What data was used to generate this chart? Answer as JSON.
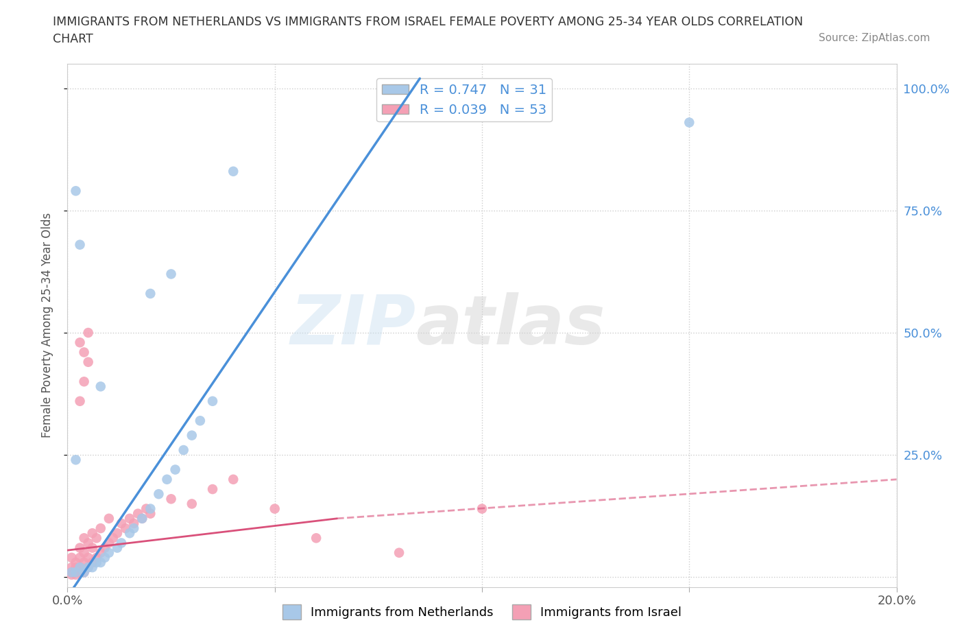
{
  "title_line1": "IMMIGRANTS FROM NETHERLANDS VS IMMIGRANTS FROM ISRAEL FEMALE POVERTY AMONG 25-34 YEAR OLDS CORRELATION",
  "title_line2": "CHART",
  "source_text": "Source: ZipAtlas.com",
  "ylabel": "Female Poverty Among 25-34 Year Olds",
  "xlim": [
    0.0,
    0.2
  ],
  "ylim": [
    -0.02,
    1.05
  ],
  "xticks": [
    0.0,
    0.05,
    0.1,
    0.15,
    0.2
  ],
  "xticklabels": [
    "0.0%",
    "",
    "",
    "",
    "20.0%"
  ],
  "yticks": [
    0.0,
    0.25,
    0.5,
    0.75,
    1.0
  ],
  "yticklabels": [
    "",
    "25.0%",
    "50.0%",
    "75.0%",
    "100.0%"
  ],
  "netherlands_color": "#a8c8e8",
  "netherlands_line_color": "#4a90d9",
  "israel_color": "#f4a0b5",
  "israel_line_color": "#d9507a",
  "R_netherlands": 0.747,
  "N_netherlands": 31,
  "R_israel": 0.039,
  "N_israel": 53,
  "legend_label_netherlands": "Immigrants from Netherlands",
  "legend_label_israel": "Immigrants from Israel",
  "watermark_text": "ZIPatlas",
  "background_color": "#ffffff",
  "grid_color": "#cccccc",
  "netherlands_scatter": [
    [
      0.001,
      0.01
    ],
    [
      0.002,
      0.01
    ],
    [
      0.003,
      0.02
    ],
    [
      0.004,
      0.01
    ],
    [
      0.005,
      0.02
    ],
    [
      0.006,
      0.02
    ],
    [
      0.007,
      0.03
    ],
    [
      0.008,
      0.03
    ],
    [
      0.009,
      0.04
    ],
    [
      0.01,
      0.05
    ],
    [
      0.012,
      0.06
    ],
    [
      0.013,
      0.07
    ],
    [
      0.015,
      0.09
    ],
    [
      0.016,
      0.1
    ],
    [
      0.018,
      0.12
    ],
    [
      0.02,
      0.14
    ],
    [
      0.022,
      0.17
    ],
    [
      0.024,
      0.2
    ],
    [
      0.026,
      0.22
    ],
    [
      0.028,
      0.26
    ],
    [
      0.03,
      0.29
    ],
    [
      0.032,
      0.32
    ],
    [
      0.035,
      0.36
    ],
    [
      0.002,
      0.79
    ],
    [
      0.04,
      0.83
    ],
    [
      0.15,
      0.93
    ],
    [
      0.003,
      0.68
    ],
    [
      0.02,
      0.58
    ],
    [
      0.025,
      0.62
    ],
    [
      0.002,
      0.24
    ],
    [
      0.008,
      0.39
    ]
  ],
  "israel_scatter": [
    [
      0.001,
      0.005
    ],
    [
      0.001,
      0.01
    ],
    [
      0.001,
      0.02
    ],
    [
      0.001,
      0.04
    ],
    [
      0.002,
      0.005
    ],
    [
      0.002,
      0.01
    ],
    [
      0.002,
      0.02
    ],
    [
      0.002,
      0.03
    ],
    [
      0.003,
      0.01
    ],
    [
      0.003,
      0.02
    ],
    [
      0.003,
      0.04
    ],
    [
      0.003,
      0.06
    ],
    [
      0.004,
      0.01
    ],
    [
      0.004,
      0.03
    ],
    [
      0.004,
      0.05
    ],
    [
      0.004,
      0.08
    ],
    [
      0.005,
      0.02
    ],
    [
      0.005,
      0.04
    ],
    [
      0.005,
      0.07
    ],
    [
      0.006,
      0.03
    ],
    [
      0.006,
      0.06
    ],
    [
      0.006,
      0.09
    ],
    [
      0.007,
      0.04
    ],
    [
      0.007,
      0.08
    ],
    [
      0.008,
      0.05
    ],
    [
      0.008,
      0.1
    ],
    [
      0.009,
      0.06
    ],
    [
      0.01,
      0.07
    ],
    [
      0.01,
      0.12
    ],
    [
      0.011,
      0.08
    ],
    [
      0.012,
      0.09
    ],
    [
      0.013,
      0.11
    ],
    [
      0.014,
      0.1
    ],
    [
      0.015,
      0.12
    ],
    [
      0.016,
      0.11
    ],
    [
      0.017,
      0.13
    ],
    [
      0.018,
      0.12
    ],
    [
      0.019,
      0.14
    ],
    [
      0.02,
      0.13
    ],
    [
      0.003,
      0.48
    ],
    [
      0.004,
      0.46
    ],
    [
      0.005,
      0.5
    ],
    [
      0.003,
      0.36
    ],
    [
      0.004,
      0.4
    ],
    [
      0.005,
      0.44
    ],
    [
      0.025,
      0.16
    ],
    [
      0.03,
      0.15
    ],
    [
      0.035,
      0.18
    ],
    [
      0.04,
      0.2
    ],
    [
      0.05,
      0.14
    ],
    [
      0.06,
      0.08
    ],
    [
      0.08,
      0.05
    ],
    [
      0.1,
      0.14
    ]
  ],
  "nl_trendline": [
    [
      0.0,
      -0.04
    ],
    [
      0.085,
      1.02
    ]
  ],
  "il_trendline_solid": [
    [
      0.0,
      0.055
    ],
    [
      0.065,
      0.12
    ]
  ],
  "il_trendline_dashed": [
    [
      0.065,
      0.12
    ],
    [
      0.2,
      0.2
    ]
  ]
}
